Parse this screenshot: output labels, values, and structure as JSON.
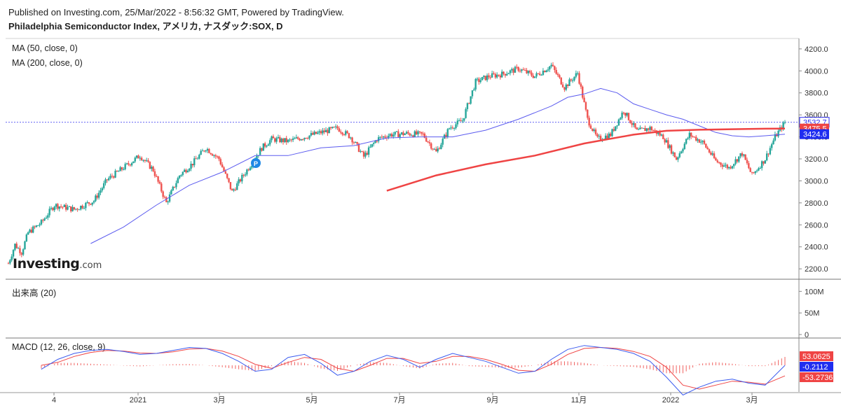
{
  "header": {
    "published": "Published on Investing.com, 25/Mar/2022 - 8:56:32 GMT, Powered by TradingView.",
    "title": "Philadelphia Semiconductor Index, アメリカ, ナスダック:SOX, D"
  },
  "panes": {
    "price": {
      "ma1_label": "MA (50, close, 0)",
      "ma2_label": "MA (200, close, 0)"
    },
    "volume": {
      "label": "出来高 (20)"
    },
    "macd": {
      "label": "MACD (12, 26, close, 9)"
    }
  },
  "logo": {
    "text": "Investing",
    "suffix": ".com"
  },
  "marker": {
    "label": "P"
  },
  "colors": {
    "up": "#26a69a",
    "down": "#ef5350",
    "ma50": "#5b5bef",
    "ma200": "#ef4444",
    "macd": "#3b5bef",
    "signal": "#ef4444",
    "hist": "#ef5350",
    "dotted": "#2d2df0"
  },
  "chart_data": [
    {
      "type": "line",
      "title": "Philadelphia Semiconductor Index, アメリカ, ナスダック:SOX, D",
      "x_ticks": [
        "4",
        "2021",
        "3月",
        "5月",
        "7月",
        "9月",
        "11月",
        "2022",
        "3月"
      ],
      "y_ticks": [
        "2200.0",
        "2400.0",
        "2600.0",
        "2800.0",
        "3000.0",
        "3200.0",
        "3400.0",
        "3600.0",
        "3800.0",
        "4000.0",
        "4200.0"
      ],
      "ylim": [
        2150,
        4250
      ],
      "price_labels": [
        {
          "text": "3532.7",
          "value": 3532.7,
          "role": "last"
        },
        {
          "text": "3475.5",
          "value": 3475.5,
          "role": "ma200"
        },
        {
          "text": "3424.6",
          "value": 3424.6,
          "role": "ma50"
        }
      ],
      "series": [
        {
          "name": "Price",
          "x": [
            0,
            4,
            8,
            12,
            20,
            28,
            40,
            52,
            60,
            70,
            80,
            88,
            96,
            104,
            112,
            120,
            128,
            136,
            146,
            154,
            160,
            170,
            180,
            190,
            200,
            208,
            216,
            224,
            232,
            242,
            252,
            260,
            268,
            276,
            284,
            292,
            300,
            310,
            320,
            330,
            338,
            346,
            352,
            358,
            366,
            374,
            382,
            390,
            398,
            406,
            414,
            422,
            430,
            438,
            446,
            452,
            460,
            466,
            472
          ],
          "values": [
            2250,
            2420,
            2350,
            2530,
            2620,
            2780,
            2740,
            2820,
            3010,
            3120,
            3230,
            3100,
            2800,
            3050,
            3160,
            3300,
            3200,
            2900,
            3120,
            3300,
            3380,
            3360,
            3400,
            3440,
            3480,
            3400,
            3220,
            3380,
            3420,
            3430,
            3420,
            3260,
            3480,
            3550,
            3900,
            3950,
            3970,
            4020,
            3950,
            4050,
            3850,
            3980,
            3560,
            3380,
            3420,
            3640,
            3450,
            3480,
            3400,
            3200,
            3420,
            3350,
            3180,
            3120,
            3250,
            3050,
            3200,
            3400,
            3532.7
          ]
        },
        {
          "name": "MA (50, close, 0)",
          "x": [
            50,
            70,
            90,
            110,
            130,
            150,
            170,
            190,
            210,
            230,
            250,
            270,
            290,
            310,
            330,
            340,
            350,
            360,
            370,
            380,
            390,
            400,
            410,
            420,
            430,
            440,
            450,
            460,
            472
          ],
          "values": [
            2430,
            2580,
            2780,
            2960,
            3080,
            3230,
            3230,
            3300,
            3320,
            3390,
            3400,
            3400,
            3460,
            3560,
            3680,
            3760,
            3790,
            3840,
            3800,
            3700,
            3650,
            3600,
            3560,
            3500,
            3440,
            3410,
            3400,
            3410,
            3424.6
          ]
        },
        {
          "name": "MA (200, close, 0)",
          "x": [
            230,
            260,
            290,
            320,
            350,
            380,
            400,
            420,
            440,
            460,
            472
          ],
          "values": [
            2910,
            3050,
            3150,
            3230,
            3340,
            3420,
            3455,
            3465,
            3470,
            3474,
            3475.5
          ]
        }
      ]
    },
    {
      "type": "bar",
      "title": "出来高 (20)",
      "y_ticks": [
        "0",
        "50M",
        "100M"
      ],
      "ylim": [
        0,
        120
      ]
    },
    {
      "type": "line",
      "title": "MACD (12, 26, close, 9)",
      "value_labels": [
        {
          "text": "53.0625",
          "value": 53.0625
        },
        {
          "text": "-0.2112",
          "value": -0.2112
        },
        {
          "text": "-53.2736",
          "value": -53.2736
        }
      ],
      "ylim": [
        -120,
        120
      ],
      "series": [
        {
          "name": "MACD",
          "x": [
            20,
            30,
            40,
            50,
            60,
            70,
            80,
            90,
            100,
            110,
            120,
            130,
            140,
            150,
            160,
            170,
            180,
            190,
            200,
            210,
            220,
            230,
            240,
            250,
            260,
            270,
            280,
            290,
            300,
            310,
            320,
            330,
            340,
            350,
            360,
            370,
            380,
            390,
            400,
            410,
            420,
            430,
            440,
            450,
            460,
            472
          ],
          "values": [
            -20,
            30,
            60,
            75,
            80,
            70,
            55,
            60,
            75,
            90,
            85,
            60,
            20,
            -30,
            -20,
            40,
            55,
            10,
            -50,
            -30,
            20,
            50,
            30,
            -10,
            30,
            60,
            40,
            20,
            -10,
            -40,
            -30,
            30,
            80,
            100,
            90,
            80,
            60,
            20,
            -60,
            -150,
            -110,
            -80,
            -70,
            -90,
            -100,
            -0.2
          ]
        },
        {
          "name": "Signal",
          "x": [
            20,
            30,
            40,
            50,
            60,
            70,
            80,
            90,
            100,
            110,
            120,
            130,
            140,
            150,
            160,
            170,
            180,
            190,
            200,
            210,
            220,
            230,
            240,
            250,
            260,
            270,
            280,
            290,
            300,
            310,
            320,
            330,
            340,
            350,
            360,
            370,
            380,
            390,
            400,
            410,
            420,
            430,
            440,
            450,
            460,
            472
          ],
          "values": [
            0,
            15,
            45,
            65,
            75,
            72,
            62,
            60,
            68,
            82,
            85,
            72,
            45,
            5,
            -15,
            15,
            40,
            30,
            -15,
            -30,
            0,
            35,
            35,
            10,
            20,
            45,
            45,
            30,
            5,
            -25,
            -30,
            5,
            55,
            85,
            90,
            85,
            70,
            45,
            -10,
            -100,
            -120,
            -100,
            -80,
            -85,
            -95,
            -53.3
          ]
        }
      ]
    }
  ]
}
